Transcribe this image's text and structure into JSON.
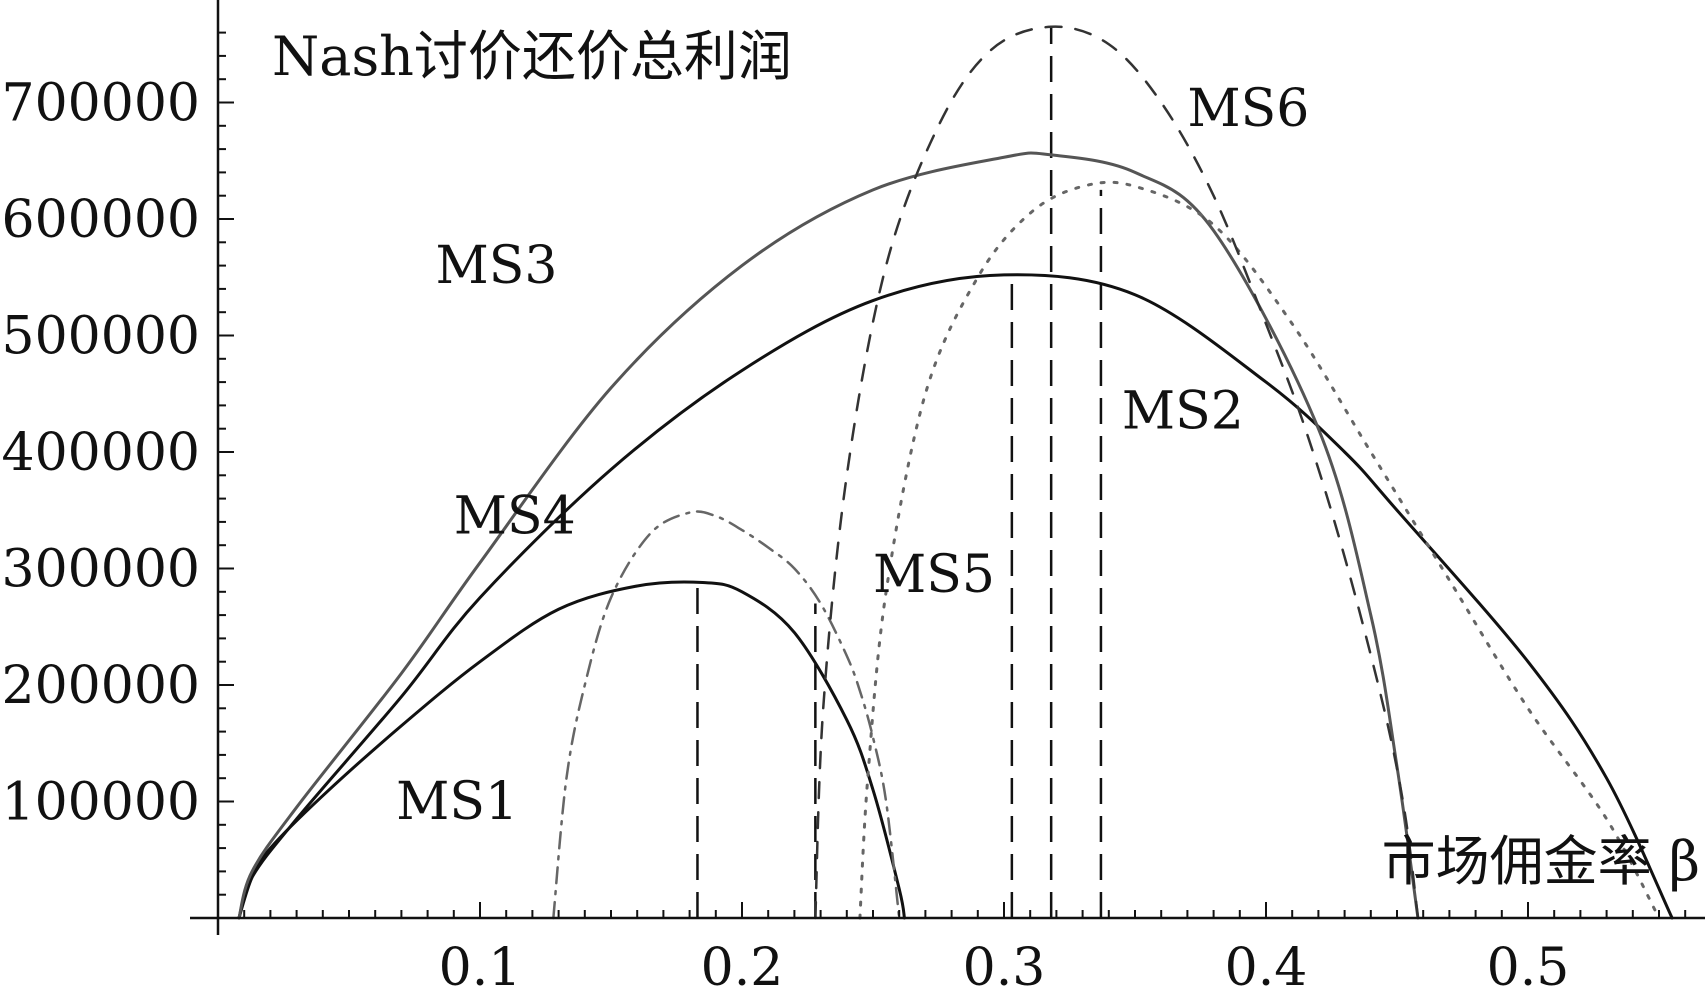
{
  "chart_data": {
    "type": "line",
    "title": "",
    "ylabel": "Nash讨价还价总利润",
    "xlabel": "市场佣金率 β",
    "xlim": [
      0,
      0.56
    ],
    "ylim": [
      0,
      760000
    ],
    "x_ticks": [
      "0.1",
      "0.2",
      "0.3",
      "0.4",
      "0.5"
    ],
    "x_tick_values": [
      0.1,
      0.2,
      0.3,
      0.4,
      0.5
    ],
    "y_ticks": [
      "100000",
      "200000",
      "300000",
      "400000",
      "500000",
      "600000",
      "700000"
    ],
    "y_tick_values": [
      100000,
      200000,
      300000,
      400000,
      500000,
      600000,
      700000
    ],
    "grid": false,
    "series": [
      {
        "name": "MS1",
        "color": "#111111",
        "style": "solid",
        "x": [
          0.008,
          0.013,
          0.02,
          0.04,
          0.07,
          0.1,
          0.13,
          0.16,
          0.185,
          0.2,
          0.22,
          0.24,
          0.25,
          0.26,
          0.262
        ],
        "y": [
          0,
          35000,
          60000,
          105000,
          165000,
          220000,
          265000,
          285000,
          288000,
          280000,
          245000,
          170000,
          110000,
          25000,
          0
        ]
      },
      {
        "name": "MS2",
        "color": "#111111",
        "style": "solid",
        "x": [
          0.008,
          0.013,
          0.03,
          0.07,
          0.1,
          0.15,
          0.2,
          0.25,
          0.3,
          0.35,
          0.4,
          0.43,
          0.45,
          0.5,
          0.53,
          0.555
        ],
        "y": [
          0,
          35000,
          85000,
          190000,
          275000,
          385000,
          470000,
          530000,
          552000,
          535000,
          460000,
          400000,
          350000,
          220000,
          120000,
          0
        ]
      },
      {
        "name": "MS3",
        "color": "#555555",
        "style": "solid",
        "x": [
          0.008,
          0.013,
          0.03,
          0.07,
          0.1,
          0.15,
          0.2,
          0.25,
          0.3,
          0.318,
          0.35,
          0.38,
          0.42,
          0.44,
          0.45,
          0.458
        ],
        "y": [
          0,
          40000,
          95000,
          210000,
          305000,
          455000,
          560000,
          625000,
          653000,
          655000,
          640000,
          590000,
          420000,
          260000,
          130000,
          0
        ]
      },
      {
        "name": "MS4",
        "color": "#666666",
        "style": "dashdot",
        "x": [
          0.128,
          0.133,
          0.14,
          0.15,
          0.165,
          0.18,
          0.19,
          0.2,
          0.21,
          0.22,
          0.23,
          0.24,
          0.245,
          0.25,
          0.255,
          0.26
        ],
        "y": [
          0,
          120000,
          200000,
          275000,
          330000,
          348000,
          345000,
          333000,
          318000,
          300000,
          270000,
          225000,
          195000,
          155000,
          100000,
          0
        ]
      },
      {
        "name": "MS5",
        "color": "#666666",
        "style": "dotted",
        "x": [
          0.245,
          0.248,
          0.255,
          0.27,
          0.29,
          0.31,
          0.33,
          0.35,
          0.38,
          0.41,
          0.44,
          0.47,
          0.5,
          0.53,
          0.55
        ],
        "y": [
          0,
          120000,
          280000,
          450000,
          550000,
          605000,
          628000,
          628000,
          595000,
          510000,
          400000,
          290000,
          180000,
          85000,
          0
        ]
      },
      {
        "name": "MS6",
        "color": "#333333",
        "style": "dashed",
        "x": [
          0.228,
          0.231,
          0.24,
          0.255,
          0.275,
          0.295,
          0.318,
          0.34,
          0.36,
          0.38,
          0.4,
          0.415,
          0.43,
          0.445,
          0.453,
          0.458
        ],
        "y": [
          0,
          180000,
          380000,
          560000,
          680000,
          745000,
          765000,
          750000,
          700000,
          620000,
          510000,
          420000,
          310000,
          180000,
          90000,
          0
        ]
      }
    ],
    "vertical_markers": [
      {
        "x": 0.183,
        "y": 288000,
        "series": "MS1"
      },
      {
        "x": 0.228,
        "y": 270000,
        "series": "MS4"
      },
      {
        "x": 0.303,
        "y": 552000,
        "series": "MS2"
      },
      {
        "x": 0.318,
        "y": 765000,
        "series": "MS6"
      },
      {
        "x": 0.337,
        "y": 625000,
        "series": "MS5"
      }
    ],
    "annotations": [
      {
        "text": "MS1",
        "x": 0.068,
        "y": 85000
      },
      {
        "text": "MS2",
        "x": 0.345,
        "y": 420000
      },
      {
        "text": "MS3",
        "x": 0.083,
        "y": 545000
      },
      {
        "text": "MS4",
        "x": 0.09,
        "y": 330000
      },
      {
        "text": "MS5",
        "x": 0.25,
        "y": 280000
      },
      {
        "text": "MS6",
        "x": 0.37,
        "y": 680000
      }
    ]
  }
}
